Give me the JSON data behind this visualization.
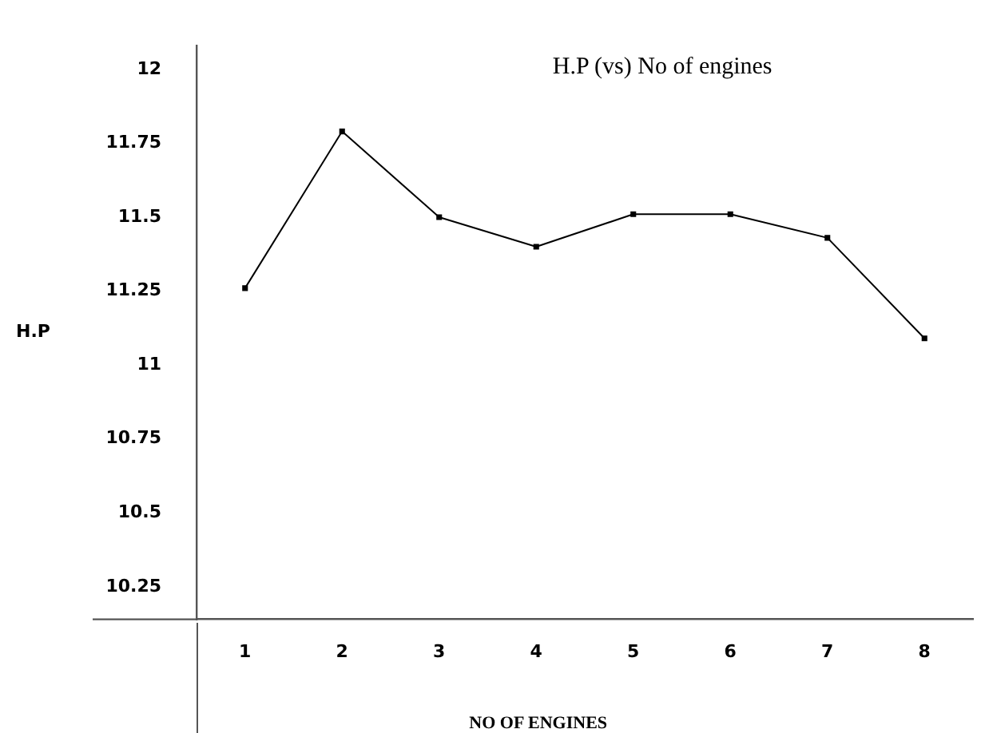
{
  "chart_data": {
    "type": "line",
    "title": "H.P (vs) No of engines",
    "xlabel": "NO OF ENGINES",
    "ylabel": "H.P",
    "categories": [
      "1",
      "2",
      "3",
      "4",
      "5",
      "6",
      "7",
      "8"
    ],
    "series": [
      {
        "color": "#000000",
        "values": [
          11.26,
          11.79,
          11.5,
          11.4,
          11.51,
          11.51,
          11.43,
          11.09
        ]
      }
    ],
    "ylim": [
      10.14,
      12.08
    ],
    "yticks": [
      10.25,
      10.5,
      10.75,
      11,
      11.25,
      11.5,
      11.75,
      12
    ],
    "grid": false,
    "legend": false,
    "marker": "square",
    "line_style": "solid"
  }
}
